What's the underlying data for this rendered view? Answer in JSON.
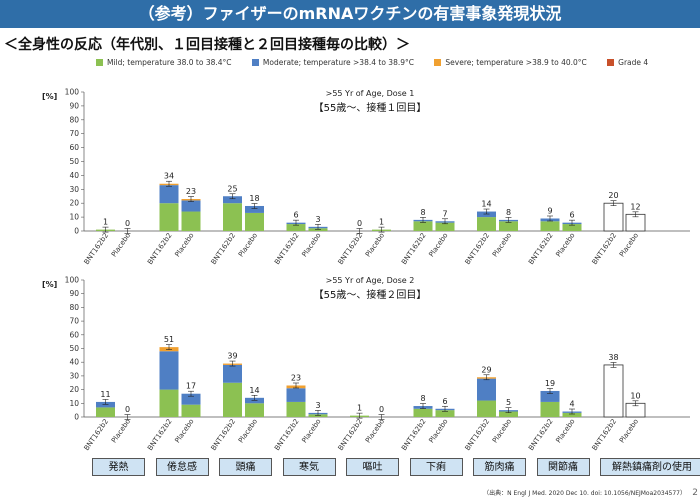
{
  "header": {
    "title": "（参考）ファイザーのmRNAワクチンの有害事象発現状況",
    "subtitle": "＜全身性の反応（年代別、１回目接種と２回目接種毎の比較）＞"
  },
  "colors": {
    "mild": "#8cc152",
    "moderate": "#4f7fc4",
    "severe": "#f0a030",
    "grade4": "#c8502a",
    "title_bg": "#2f6ea8",
    "category_bg": "#cfe3f3"
  },
  "legend": [
    {
      "key": "mild",
      "label": "Mild; temperature 38.0 to 38.4°C"
    },
    {
      "key": "moderate",
      "label": "Moderate; temperature >38.4 to 38.9°C"
    },
    {
      "key": "severe",
      "label": "Severe; temperature >38.9 to 40.0°C"
    },
    {
      "key": "grade4",
      "label": "Grade 4"
    }
  ],
  "categories": [
    "発熱",
    "倦怠感",
    "頭痛",
    "寒気",
    "嘔吐",
    "下痢",
    "筋肉痛",
    "関節痛",
    "解熱鎮痛剤の使用"
  ],
  "footer": "（出典：N Engl J Med. 2020 Dec 10.  doi: 10.1056/NEJMoa2034577）",
  "page_number": "2",
  "chart_data": [
    {
      "type": "bar",
      "subtype": "stacked",
      "title": ">55 Yr of Age, Dose 1",
      "subtitle_jp": "【55歳〜、接種１回目】",
      "ylabel": "[%]",
      "ylim": [
        0,
        100
      ],
      "yticks": [
        0,
        10,
        20,
        30,
        40,
        50,
        60,
        70,
        80,
        90,
        100
      ],
      "x_labels": [
        "BNT162b2",
        "Placebo",
        "BNT162b2",
        "Placebo",
        "BNT162b2",
        "Placebo",
        "BNT162b2",
        "Placebo",
        "BNT162b2",
        "Placebo",
        "BNT162b2",
        "Placebo",
        "BNT162b2",
        "Placebo",
        "BNT162b2",
        "Placebo",
        "BNT162b2",
        "Placebo"
      ],
      "totals": [
        1,
        0,
        34,
        23,
        25,
        18,
        6,
        3,
        0,
        1,
        8,
        7,
        14,
        8,
        9,
        6,
        20,
        12
      ],
      "series": [
        {
          "name": "mild",
          "values": [
            1,
            0,
            20,
            14,
            20,
            13,
            5,
            2,
            0,
            1,
            7,
            6,
            10,
            7,
            7,
            5,
            0,
            0
          ]
        },
        {
          "name": "moderate",
          "values": [
            0,
            0,
            13,
            8,
            5,
            5,
            1,
            1,
            0,
            0,
            1,
            1,
            4,
            1,
            2,
            1,
            0,
            0
          ]
        },
        {
          "name": "severe",
          "values": [
            0,
            0,
            1,
            1,
            0,
            0,
            0,
            0,
            0,
            0,
            0,
            0,
            0,
            0,
            0,
            0,
            0,
            0
          ]
        },
        {
          "name": "grade4",
          "values": [
            0,
            0,
            0,
            0,
            0,
            0,
            0,
            0,
            0,
            0,
            0,
            0,
            0,
            0,
            0,
            0,
            0,
            0
          ]
        }
      ]
    },
    {
      "type": "bar",
      "subtype": "stacked",
      "title": ">55 Yr of Age, Dose 2",
      "subtitle_jp": "【55歳〜、接種２回目】",
      "ylabel": "[%]",
      "ylim": [
        0,
        100
      ],
      "yticks": [
        0,
        10,
        20,
        30,
        40,
        50,
        60,
        70,
        80,
        90,
        100
      ],
      "x_labels": [
        "BNT162b2",
        "Placebo",
        "BNT162b2",
        "Placebo",
        "BNT162b2",
        "Placebo",
        "BNT162b2",
        "Placebo",
        "BNT162b2",
        "Placebo",
        "BNT162b2",
        "Placebo",
        "BNT162b2",
        "Placebo",
        "BNT162b2",
        "Placebo",
        "BNT162b2",
        "Placebo"
      ],
      "totals": [
        11,
        0,
        51,
        17,
        39,
        14,
        23,
        3,
        1,
        0,
        8,
        6,
        29,
        5,
        19,
        4,
        38,
        10
      ],
      "series": [
        {
          "name": "mild",
          "values": [
            7,
            0,
            20,
            9,
            25,
            10,
            11,
            2,
            1,
            0,
            6,
            5,
            12,
            4,
            11,
            3,
            0,
            0
          ]
        },
        {
          "name": "moderate",
          "values": [
            4,
            0,
            28,
            8,
            13,
            4,
            10,
            1,
            0,
            0,
            2,
            1,
            16,
            1,
            8,
            1,
            0,
            0
          ]
        },
        {
          "name": "severe",
          "values": [
            0,
            0,
            3,
            0,
            1,
            0,
            2,
            0,
            0,
            0,
            0,
            0,
            1,
            0,
            0,
            0,
            0,
            0
          ]
        },
        {
          "name": "grade4",
          "values": [
            0,
            0,
            0,
            0,
            0,
            0,
            0,
            0,
            0,
            0,
            0,
            0,
            0,
            0,
            0,
            0,
            0,
            0
          ]
        }
      ]
    }
  ]
}
